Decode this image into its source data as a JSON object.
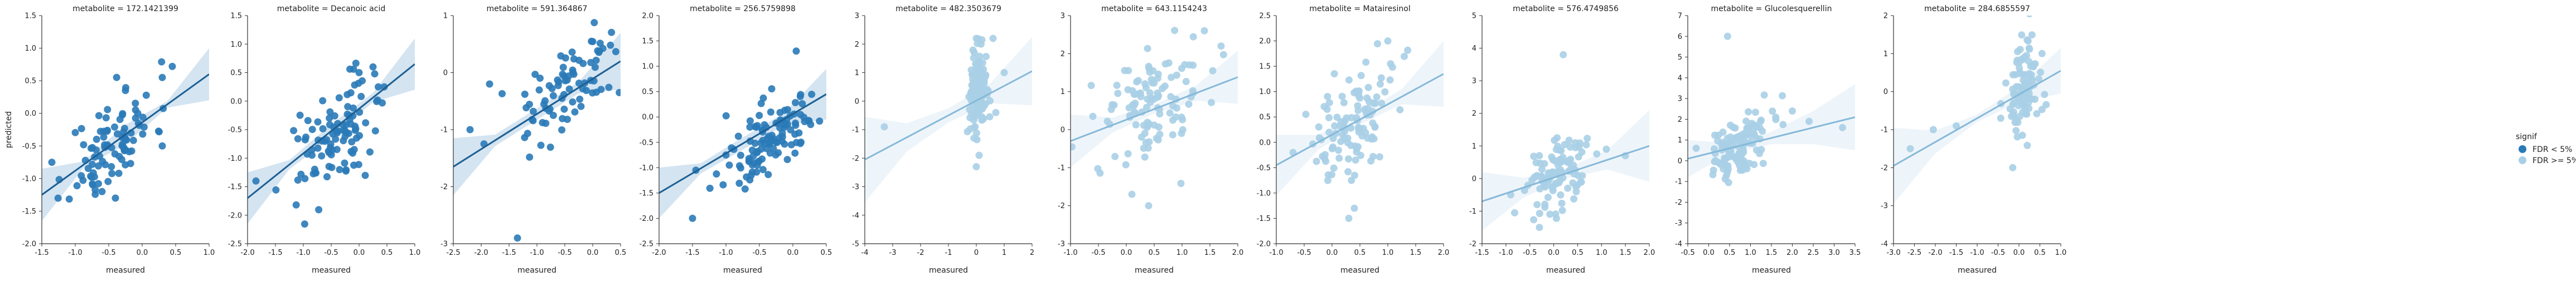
{
  "figure": {
    "legend": {
      "title": "signif",
      "entries": [
        {
          "label": "FDR < 5%",
          "color": "#2a7ab8"
        },
        {
          "label": "FDR >= 5%",
          "color": "#a9cfe5"
        }
      ]
    },
    "colors": {
      "significant": "#2a7ab8",
      "significant_line": "#1c5f93",
      "nonsignificant": "#a9cfe5",
      "nonsignificant_line": "#86b9d9",
      "axis": "#333333"
    }
  },
  "chart_data": [
    {
      "type": "scatter",
      "title": "metabolite = 172.1421399",
      "xlabel": "measured",
      "ylabel": "predicted",
      "signif": "FDR < 5%",
      "xlim": [
        -1.5,
        1.0
      ],
      "ylim": [
        -2.0,
        1.5
      ],
      "xticks": [
        "-1.5",
        "-1.0",
        "-0.5",
        "0.0",
        "0.5",
        "1.0"
      ],
      "yticks": [
        "-2.0",
        "-1.5",
        "-1.0",
        "-0.5",
        "0.0",
        "0.5",
        "1.0",
        "1.5"
      ],
      "fit": {
        "x1": -1.5,
        "y1": -1.25,
        "x2": 1.0,
        "y2": 0.6,
        "band": [
          0.4,
          0.05,
          0.15,
          0.05,
          0.4
        ]
      },
      "points_spec": {
        "n": 90,
        "cx": -0.45,
        "sx": 0.32,
        "slope": 0.74,
        "icept": -0.12,
        "noise": 0.35,
        "seed": 11
      },
      "extra_points": [
        [
          -1.35,
          -0.75
        ],
        [
          0.45,
          0.72
        ],
        [
          0.3,
          0.55
        ],
        [
          -0.4,
          -1.3
        ],
        [
          0.3,
          -0.5
        ],
        [
          -0.6,
          -1.2
        ]
      ]
    },
    {
      "type": "scatter",
      "title": "metabolite = Decanoic acid",
      "xlabel": "measured",
      "ylabel": "",
      "signif": "FDR < 5%",
      "xlim": [
        -2.0,
        1.0
      ],
      "ylim": [
        -2.5,
        1.5
      ],
      "xticks": [
        "-2.0",
        "-1.5",
        "-1.0",
        "-0.5",
        "0.0",
        "0.5",
        "1.0"
      ],
      "yticks": [
        "-2.5",
        "-2.0",
        "-1.5",
        "-1.0",
        "-0.5",
        "0.0",
        "0.5",
        "1.0",
        "1.5"
      ],
      "fit": {
        "x1": -2.0,
        "y1": -1.7,
        "x2": 1.0,
        "y2": 0.65,
        "band": [
          0.45,
          0.08,
          0.12,
          0.08,
          0.45
        ]
      },
      "points_spec": {
        "n": 100,
        "cx": -0.45,
        "sx": 0.35,
        "slope": 0.75,
        "icept": -0.3,
        "noise": 0.4,
        "seed": 22
      },
      "extra_points": [
        [
          -1.85,
          -1.4
        ],
        [
          0.45,
          0.25
        ],
        [
          0.25,
          0.6
        ],
        [
          -0.35,
          -1.2
        ],
        [
          0.0,
          0.5
        ]
      ]
    },
    {
      "type": "scatter",
      "title": "metabolite = 591.364867",
      "xlabel": "measured",
      "ylabel": "",
      "signif": "FDR < 5%",
      "xlim": [
        -2.5,
        0.5
      ],
      "ylim": [
        -3.0,
        1.0
      ],
      "xticks": [
        "-2.5",
        "-2.0",
        "-1.5",
        "-1.0",
        "-0.5",
        "0.0",
        "0.5"
      ],
      "yticks": [
        "-3",
        "-2",
        "-1",
        "0",
        "1"
      ],
      "fit": {
        "x1": -2.5,
        "y1": -1.65,
        "x2": 0.5,
        "y2": 0.2,
        "band": [
          0.5,
          0.1,
          0.1,
          0.1,
          0.5
        ]
      },
      "points_spec": {
        "n": 80,
        "cx": -0.45,
        "sx": 0.4,
        "slope": 0.62,
        "icept": -0.05,
        "noise": 0.35,
        "seed": 33
      },
      "extra_points": [
        [
          -1.35,
          -2.9
        ],
        [
          -2.2,
          -1.0
        ],
        [
          -1.85,
          -0.2
        ],
        [
          -1.95,
          -1.25
        ]
      ]
    },
    {
      "type": "scatter",
      "title": "metabolite = 256.5759898",
      "xlabel": "measured",
      "ylabel": "",
      "signif": "FDR < 5%",
      "xlim": [
        -2.0,
        0.5
      ],
      "ylim": [
        -2.5,
        2.0
      ],
      "xticks": [
        "-2.0",
        "-1.5",
        "-1.0",
        "-0.5",
        "0.0",
        "0.5"
      ],
      "yticks": [
        "-2.5",
        "-2.0",
        "-1.5",
        "-1.0",
        "-0.5",
        "0.0",
        "0.5",
        "1.0",
        "1.5",
        "2.0"
      ],
      "fit": {
        "x1": -2.0,
        "y1": -1.5,
        "x2": 0.5,
        "y2": 0.45,
        "band": [
          0.5,
          0.1,
          0.12,
          0.12,
          0.5
        ]
      },
      "points_spec": {
        "n": 110,
        "cx": -0.35,
        "sx": 0.35,
        "slope": 0.8,
        "icept": -0.15,
        "noise": 0.4,
        "seed": 44
      },
      "extra_points": [
        [
          -1.5,
          -2.0
        ],
        [
          0.05,
          1.3
        ],
        [
          -1.0,
          -0.75
        ],
        [
          -0.95,
          -0.95
        ],
        [
          -1.45,
          -1.05
        ]
      ]
    },
    {
      "type": "scatter",
      "title": "metabolite = 482.3503679",
      "xlabel": "measured",
      "ylabel": "",
      "signif": "FDR >= 5%",
      "xlim": [
        -4,
        2
      ],
      "ylim": [
        -5,
        3
      ],
      "xticks": [
        "-4",
        "-3",
        "-2",
        "-1",
        "0",
        "1",
        "2"
      ],
      "yticks": [
        "-5",
        "-4",
        "-3",
        "-2",
        "-1",
        "0",
        "1",
        "2",
        "3"
      ],
      "fit": {
        "x1": -4.0,
        "y1": -2.05,
        "x2": 2.0,
        "y2": 1.05,
        "band": [
          1.5,
          0.5,
          0.25,
          0.35,
          1.2
        ]
      },
      "points_spec": {
        "n": 110,
        "cx": 0.05,
        "sx": 0.18,
        "slope": 0.5,
        "icept": 0.2,
        "noise": 0.75,
        "seed": 55
      },
      "extra_points": [
        [
          -3.3,
          -0.9
        ],
        [
          0.0,
          2.2
        ],
        [
          0.2,
          2.15
        ],
        [
          0.6,
          2.2
        ],
        [
          0.0,
          -2.3
        ],
        [
          0.1,
          -1.9
        ],
        [
          1.0,
          1.0
        ],
        [
          0.7,
          -0.4
        ]
      ]
    },
    {
      "type": "scatter",
      "title": "metabolite = 643.1154243",
      "xlabel": "measured",
      "ylabel": "",
      "signif": "FDR >= 5%",
      "xlim": [
        -1.0,
        2.0
      ],
      "ylim": [
        -3,
        3
      ],
      "xticks": [
        "-1.0",
        "-0.5",
        "0.0",
        "0.5",
        "1.0",
        "1.5",
        "2.0"
      ],
      "yticks": [
        "-3",
        "-2",
        "-1",
        "0",
        "1",
        "2",
        "3"
      ],
      "fit": {
        "x1": -1.0,
        "y1": -0.3,
        "x2": 2.0,
        "y2": 1.38,
        "band": [
          0.7,
          0.2,
          0.12,
          0.2,
          0.7
        ]
      },
      "points_spec": {
        "n": 110,
        "cx": 0.45,
        "sx": 0.45,
        "slope": 0.55,
        "icept": 0.3,
        "noise": 0.7,
        "seed": 66
      },
      "extra_points": [
        [
          -0.6,
          0.35
        ],
        [
          1.7,
          2.2
        ],
        [
          1.55,
          1.55
        ],
        [
          0.4,
          -2.0
        ],
        [
          0.1,
          -1.7
        ],
        [
          1.4,
          2.6
        ]
      ]
    },
    {
      "type": "scatter",
      "title": "metabolite = Matairesinol",
      "xlabel": "measured",
      "ylabel": "",
      "signif": "FDR >= 5%",
      "xlim": [
        -1.0,
        2.0
      ],
      "ylim": [
        -2.0,
        2.5
      ],
      "xticks": [
        "-1.0",
        "-0.5",
        "0.0",
        "0.5",
        "1.0",
        "1.5",
        "2.0"
      ],
      "yticks": [
        "-2.0",
        "-1.5",
        "-1.0",
        "-0.5",
        "0.0",
        "0.5",
        "1.0",
        "1.5",
        "2.0",
        "2.5"
      ],
      "fit": {
        "x1": -1.0,
        "y1": -0.45,
        "x2": 2.0,
        "y2": 1.35,
        "band": [
          0.6,
          0.15,
          0.1,
          0.15,
          0.65
        ]
      },
      "points_spec": {
        "n": 110,
        "cx": 0.35,
        "sx": 0.42,
        "slope": 0.6,
        "icept": 0.1,
        "noise": 0.55,
        "seed": 77
      },
      "extra_points": [
        [
          -0.7,
          -0.2
        ],
        [
          1.0,
          2.0
        ],
        [
          1.05,
          1.55
        ],
        [
          0.3,
          -1.5
        ],
        [
          0.4,
          -1.3
        ]
      ]
    },
    {
      "type": "scatter",
      "title": "metabolite = 576.4749856",
      "xlabel": "measured",
      "ylabel": "",
      "signif": "FDR >= 5%",
      "xlim": [
        -1.5,
        2.0
      ],
      "ylim": [
        -2,
        5
      ],
      "xticks": [
        "-1.5",
        "-1.0",
        "-0.5",
        "0.0",
        "0.5",
        "1.0",
        "1.5",
        "2.0"
      ],
      "yticks": [
        "-2",
        "-1",
        "0",
        "1",
        "2",
        "3",
        "4",
        "5"
      ],
      "fit": {
        "x1": -1.5,
        "y1": -0.7,
        "x2": 2.0,
        "y2": 1.0,
        "band": [
          0.9,
          0.3,
          0.15,
          0.3,
          1.1
        ]
      },
      "points_spec": {
        "n": 110,
        "cx": 0.1,
        "sx": 0.28,
        "slope": 0.45,
        "icept": 0.1,
        "noise": 0.55,
        "seed": 88
      },
      "extra_points": [
        [
          -0.9,
          -0.5
        ],
        [
          0.2,
          3.8
        ],
        [
          1.1,
          0.9
        ],
        [
          1.5,
          0.7
        ],
        [
          -0.3,
          -1.5
        ]
      ]
    },
    {
      "type": "scatter",
      "title": "metabolite = Glucolesquerellin",
      "xlabel": "measured",
      "ylabel": "",
      "signif": "FDR >= 5%",
      "xlim": [
        -0.5,
        3.5
      ],
      "ylim": [
        -4,
        7
      ],
      "xticks": [
        "-0.5",
        "0.0",
        "0.5",
        "1.0",
        "1.5",
        "2.0",
        "2.5",
        "3.0",
        "3.5"
      ],
      "yticks": [
        "-4",
        "-3",
        "-2",
        "-1",
        "0",
        "1",
        "2",
        "3",
        "4",
        "5",
        "6",
        "7"
      ],
      "fit": {
        "x1": -0.5,
        "y1": 0.1,
        "x2": 3.5,
        "y2": 2.1,
        "band": [
          0.9,
          0.25,
          0.3,
          0.8,
          1.6
        ]
      },
      "points_spec": {
        "n": 120,
        "cx": 0.75,
        "sx": 0.35,
        "slope": 0.5,
        "icept": 0.35,
        "noise": 0.75,
        "seed": 99
      },
      "extra_points": [
        [
          0.45,
          6.0
        ],
        [
          2.4,
          1.9
        ],
        [
          3.2,
          1.6
        ],
        [
          2.0,
          2.4
        ],
        [
          -0.3,
          0.6
        ]
      ]
    },
    {
      "type": "scatter",
      "title": "metabolite = 284.6855597",
      "xlabel": "measured",
      "ylabel": "",
      "signif": "FDR >= 5%",
      "xlim": [
        -3.0,
        1.0
      ],
      "ylim": [
        -4,
        2
      ],
      "xticks": [
        "-3.0",
        "-2.5",
        "-2.0",
        "-1.5",
        "-1.0",
        "-0.5",
        "0.0",
        "0.5",
        "1.0"
      ],
      "yticks": [
        "-4",
        "-3",
        "-2",
        "-1",
        "0",
        "1",
        "2"
      ],
      "fit": {
        "x1": -3.0,
        "y1": -1.95,
        "x2": 1.0,
        "y2": 0.55,
        "band": [
          1.0,
          0.3,
          0.1,
          0.2,
          0.6
        ]
      },
      "points_spec": {
        "n": 110,
        "cx": 0.1,
        "sx": 0.22,
        "slope": 0.6,
        "icept": -0.05,
        "noise": 0.55,
        "seed": 111
      },
      "extra_points": [
        [
          -2.6,
          -1.5
        ],
        [
          -2.05,
          -1.0
        ],
        [
          -1.5,
          -0.9
        ],
        [
          0.25,
          2.05
        ],
        [
          0.55,
          1.0
        ],
        [
          -0.15,
          -2.0
        ]
      ]
    }
  ]
}
